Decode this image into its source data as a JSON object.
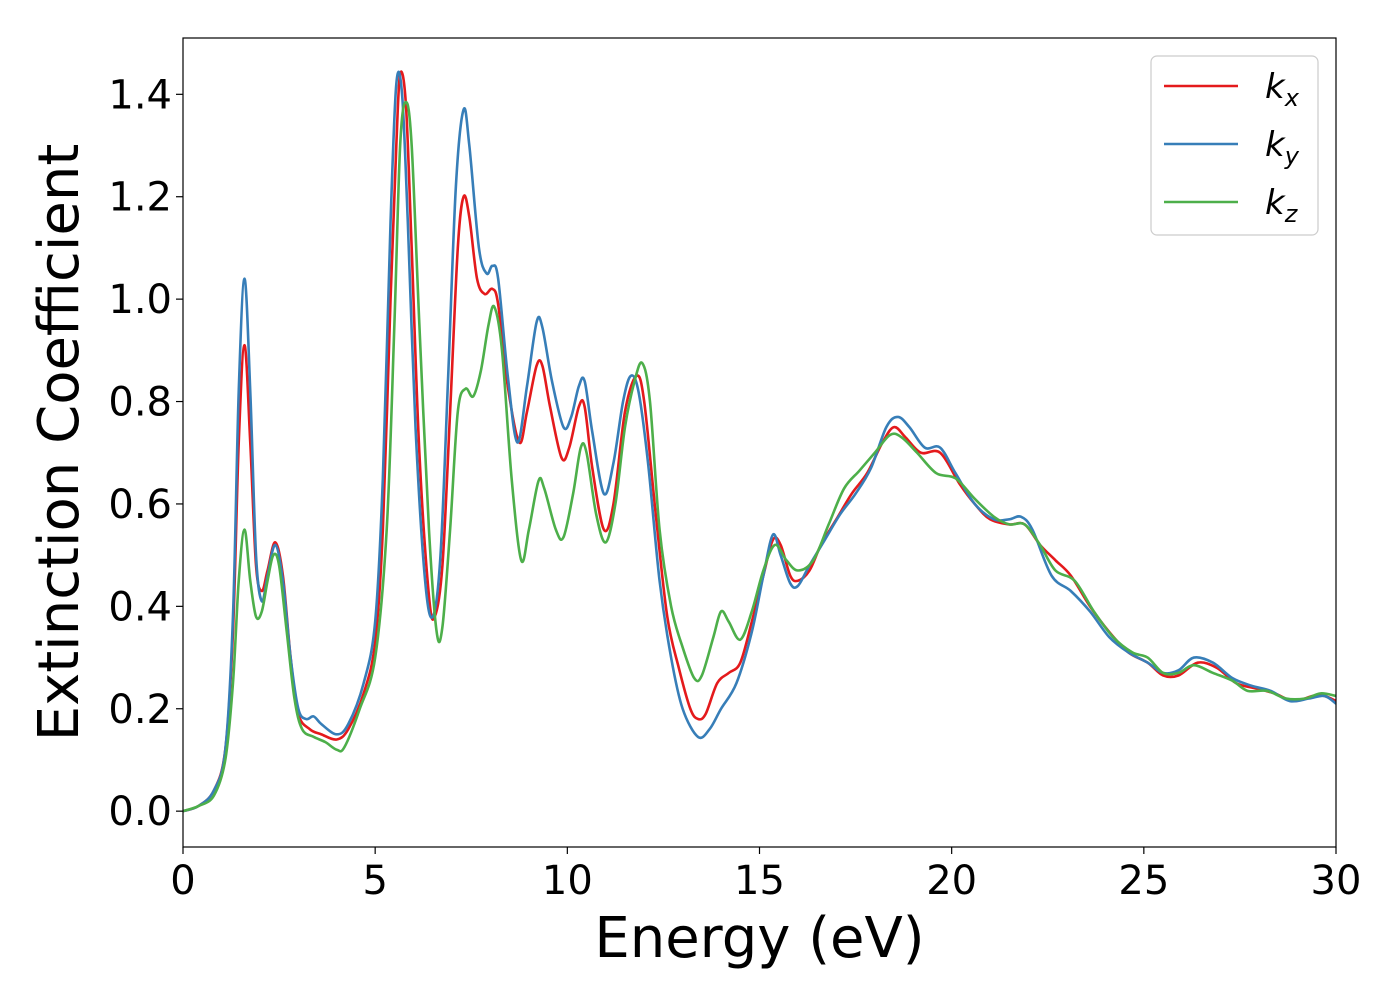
{
  "chart_data": {
    "type": "line",
    "xlabel": "Energy (eV)",
    "ylabel": "Extinction Coefficient",
    "xlim": [
      0,
      30
    ],
    "ylim": [
      -0.07,
      1.51
    ],
    "xticks": [
      0,
      5,
      10,
      15,
      20,
      25,
      30
    ],
    "xtick_labels": [
      "0",
      "5",
      "10",
      "15",
      "20",
      "25",
      "30"
    ],
    "yticks": [
      0.0,
      0.2,
      0.4,
      0.6,
      0.8,
      1.0,
      1.2,
      1.4
    ],
    "ytick_labels": [
      "0.0",
      "0.2",
      "0.4",
      "0.6",
      "0.8",
      "1.0",
      "1.2",
      "1.4"
    ],
    "grid": false,
    "legend": {
      "position": "top-right",
      "entries": [
        {
          "base": "k",
          "sub": "x",
          "color": "#e41a1c"
        },
        {
          "base": "k",
          "sub": "y",
          "color": "#377eb8"
        },
        {
          "base": "k",
          "sub": "z",
          "color": "#4daf4a"
        }
      ]
    },
    "series": [
      {
        "name": "kx",
        "color": "#e41a1c",
        "points": [
          [
            0,
            0
          ],
          [
            0.4,
            0.01
          ],
          [
            0.8,
            0.04
          ],
          [
            1.1,
            0.12
          ],
          [
            1.3,
            0.35
          ],
          [
            1.45,
            0.72
          ],
          [
            1.6,
            0.91
          ],
          [
            1.75,
            0.72
          ],
          [
            1.9,
            0.48
          ],
          [
            2.05,
            0.43
          ],
          [
            2.2,
            0.47
          ],
          [
            2.4,
            0.525
          ],
          [
            2.6,
            0.46
          ],
          [
            2.8,
            0.3
          ],
          [
            3.0,
            0.19
          ],
          [
            3.3,
            0.16
          ],
          [
            3.6,
            0.15
          ],
          [
            4.0,
            0.14
          ],
          [
            4.3,
            0.16
          ],
          [
            4.7,
            0.23
          ],
          [
            5.0,
            0.33
          ],
          [
            5.2,
            0.55
          ],
          [
            5.4,
            1.0
          ],
          [
            5.55,
            1.3
          ],
          [
            5.65,
            1.44
          ],
          [
            5.8,
            1.38
          ],
          [
            5.95,
            1.1
          ],
          [
            6.15,
            0.7
          ],
          [
            6.4,
            0.42
          ],
          [
            6.55,
            0.38
          ],
          [
            6.75,
            0.48
          ],
          [
            6.95,
            0.78
          ],
          [
            7.15,
            1.1
          ],
          [
            7.3,
            1.2
          ],
          [
            7.45,
            1.16
          ],
          [
            7.65,
            1.04
          ],
          [
            7.85,
            1.01
          ],
          [
            8.05,
            1.02
          ],
          [
            8.2,
            0.99
          ],
          [
            8.45,
            0.83
          ],
          [
            8.75,
            0.72
          ],
          [
            8.95,
            0.78
          ],
          [
            9.2,
            0.87
          ],
          [
            9.35,
            0.87
          ],
          [
            9.55,
            0.79
          ],
          [
            9.85,
            0.69
          ],
          [
            10.05,
            0.71
          ],
          [
            10.3,
            0.79
          ],
          [
            10.45,
            0.79
          ],
          [
            10.65,
            0.67
          ],
          [
            10.95,
            0.55
          ],
          [
            11.2,
            0.6
          ],
          [
            11.5,
            0.78
          ],
          [
            11.8,
            0.85
          ],
          [
            12.0,
            0.8
          ],
          [
            12.3,
            0.58
          ],
          [
            12.6,
            0.38
          ],
          [
            12.9,
            0.28
          ],
          [
            13.2,
            0.2
          ],
          [
            13.4,
            0.18
          ],
          [
            13.6,
            0.19
          ],
          [
            13.9,
            0.25
          ],
          [
            14.2,
            0.27
          ],
          [
            14.5,
            0.29
          ],
          [
            14.8,
            0.37
          ],
          [
            15.1,
            0.46
          ],
          [
            15.35,
            0.53
          ],
          [
            15.55,
            0.52
          ],
          [
            15.8,
            0.46
          ],
          [
            16.0,
            0.45
          ],
          [
            16.3,
            0.47
          ],
          [
            16.6,
            0.52
          ],
          [
            17.0,
            0.57
          ],
          [
            17.4,
            0.62
          ],
          [
            17.8,
            0.66
          ],
          [
            18.2,
            0.72
          ],
          [
            18.5,
            0.75
          ],
          [
            18.8,
            0.73
          ],
          [
            19.2,
            0.7
          ],
          [
            19.7,
            0.7
          ],
          [
            20.2,
            0.64
          ],
          [
            20.6,
            0.6
          ],
          [
            21.0,
            0.57
          ],
          [
            21.5,
            0.56
          ],
          [
            21.9,
            0.56
          ],
          [
            22.3,
            0.52
          ],
          [
            22.7,
            0.49
          ],
          [
            23.1,
            0.46
          ],
          [
            23.6,
            0.4
          ],
          [
            24.1,
            0.35
          ],
          [
            24.6,
            0.31
          ],
          [
            25.1,
            0.29
          ],
          [
            25.5,
            0.265
          ],
          [
            25.9,
            0.265
          ],
          [
            26.4,
            0.29
          ],
          [
            26.9,
            0.28
          ],
          [
            27.4,
            0.25
          ],
          [
            27.9,
            0.24
          ],
          [
            28.4,
            0.23
          ],
          [
            28.9,
            0.215
          ],
          [
            29.4,
            0.225
          ],
          [
            29.7,
            0.225
          ],
          [
            30.0,
            0.215
          ]
        ]
      },
      {
        "name": "ky",
        "color": "#377eb8",
        "points": [
          [
            0,
            0
          ],
          [
            0.4,
            0.01
          ],
          [
            0.8,
            0.04
          ],
          [
            1.1,
            0.12
          ],
          [
            1.3,
            0.38
          ],
          [
            1.45,
            0.82
          ],
          [
            1.6,
            1.04
          ],
          [
            1.75,
            0.82
          ],
          [
            1.9,
            0.5
          ],
          [
            2.05,
            0.41
          ],
          [
            2.2,
            0.46
          ],
          [
            2.4,
            0.52
          ],
          [
            2.6,
            0.45
          ],
          [
            2.8,
            0.3
          ],
          [
            3.0,
            0.2
          ],
          [
            3.2,
            0.18
          ],
          [
            3.4,
            0.185
          ],
          [
            3.6,
            0.17
          ],
          [
            4.0,
            0.15
          ],
          [
            4.3,
            0.17
          ],
          [
            4.7,
            0.25
          ],
          [
            5.0,
            0.37
          ],
          [
            5.2,
            0.65
          ],
          [
            5.4,
            1.15
          ],
          [
            5.55,
            1.42
          ],
          [
            5.7,
            1.4
          ],
          [
            5.85,
            1.15
          ],
          [
            6.05,
            0.75
          ],
          [
            6.3,
            0.45
          ],
          [
            6.5,
            0.38
          ],
          [
            6.7,
            0.5
          ],
          [
            6.9,
            0.85
          ],
          [
            7.1,
            1.22
          ],
          [
            7.3,
            1.37
          ],
          [
            7.45,
            1.3
          ],
          [
            7.7,
            1.1
          ],
          [
            7.9,
            1.05
          ],
          [
            8.05,
            1.065
          ],
          [
            8.2,
            1.04
          ],
          [
            8.45,
            0.85
          ],
          [
            8.7,
            0.72
          ],
          [
            8.95,
            0.83
          ],
          [
            9.2,
            0.955
          ],
          [
            9.35,
            0.945
          ],
          [
            9.6,
            0.84
          ],
          [
            9.9,
            0.75
          ],
          [
            10.1,
            0.77
          ],
          [
            10.3,
            0.83
          ],
          [
            10.45,
            0.84
          ],
          [
            10.65,
            0.74
          ],
          [
            10.95,
            0.62
          ],
          [
            11.2,
            0.68
          ],
          [
            11.45,
            0.8
          ],
          [
            11.65,
            0.85
          ],
          [
            11.85,
            0.82
          ],
          [
            12.1,
            0.68
          ],
          [
            12.4,
            0.45
          ],
          [
            12.7,
            0.3
          ],
          [
            13.0,
            0.2
          ],
          [
            13.4,
            0.145
          ],
          [
            13.7,
            0.16
          ],
          [
            14.0,
            0.2
          ],
          [
            14.4,
            0.25
          ],
          [
            14.8,
            0.35
          ],
          [
            15.1,
            0.46
          ],
          [
            15.35,
            0.54
          ],
          [
            15.55,
            0.5
          ],
          [
            15.8,
            0.445
          ],
          [
            16.0,
            0.44
          ],
          [
            16.3,
            0.48
          ],
          [
            16.7,
            0.53
          ],
          [
            17.1,
            0.58
          ],
          [
            17.5,
            0.62
          ],
          [
            17.9,
            0.67
          ],
          [
            18.3,
            0.75
          ],
          [
            18.6,
            0.77
          ],
          [
            18.9,
            0.75
          ],
          [
            19.3,
            0.71
          ],
          [
            19.7,
            0.71
          ],
          [
            20.1,
            0.66
          ],
          [
            20.6,
            0.6
          ],
          [
            21.1,
            0.57
          ],
          [
            21.5,
            0.57
          ],
          [
            21.8,
            0.575
          ],
          [
            22.1,
            0.55
          ],
          [
            22.6,
            0.46
          ],
          [
            23.1,
            0.43
          ],
          [
            23.6,
            0.39
          ],
          [
            24.1,
            0.34
          ],
          [
            24.6,
            0.31
          ],
          [
            25.1,
            0.29
          ],
          [
            25.5,
            0.27
          ],
          [
            25.9,
            0.275
          ],
          [
            26.3,
            0.3
          ],
          [
            26.8,
            0.29
          ],
          [
            27.3,
            0.26
          ],
          [
            27.8,
            0.245
          ],
          [
            28.3,
            0.235
          ],
          [
            28.8,
            0.215
          ],
          [
            29.3,
            0.22
          ],
          [
            29.7,
            0.225
          ],
          [
            30.0,
            0.21
          ]
        ]
      },
      {
        "name": "kz",
        "color": "#4daf4a",
        "points": [
          [
            0,
            0
          ],
          [
            0.4,
            0.01
          ],
          [
            0.8,
            0.03
          ],
          [
            1.1,
            0.1
          ],
          [
            1.3,
            0.25
          ],
          [
            1.45,
            0.45
          ],
          [
            1.6,
            0.55
          ],
          [
            1.75,
            0.45
          ],
          [
            1.9,
            0.38
          ],
          [
            2.05,
            0.39
          ],
          [
            2.2,
            0.45
          ],
          [
            2.35,
            0.5
          ],
          [
            2.5,
            0.48
          ],
          [
            2.7,
            0.35
          ],
          [
            2.9,
            0.22
          ],
          [
            3.1,
            0.16
          ],
          [
            3.4,
            0.145
          ],
          [
            3.7,
            0.135
          ],
          [
            4.0,
            0.12
          ],
          [
            4.2,
            0.125
          ],
          [
            4.6,
            0.2
          ],
          [
            5.0,
            0.3
          ],
          [
            5.3,
            0.55
          ],
          [
            5.5,
            0.95
          ],
          [
            5.65,
            1.3
          ],
          [
            5.8,
            1.385
          ],
          [
            5.95,
            1.3
          ],
          [
            6.15,
            0.95
          ],
          [
            6.4,
            0.55
          ],
          [
            6.6,
            0.35
          ],
          [
            6.75,
            0.36
          ],
          [
            6.95,
            0.55
          ],
          [
            7.15,
            0.78
          ],
          [
            7.35,
            0.825
          ],
          [
            7.55,
            0.81
          ],
          [
            7.75,
            0.86
          ],
          [
            7.95,
            0.95
          ],
          [
            8.1,
            0.985
          ],
          [
            8.3,
            0.9
          ],
          [
            8.55,
            0.65
          ],
          [
            8.8,
            0.49
          ],
          [
            9.0,
            0.55
          ],
          [
            9.25,
            0.645
          ],
          [
            9.4,
            0.63
          ],
          [
            9.7,
            0.55
          ],
          [
            9.9,
            0.535
          ],
          [
            10.15,
            0.62
          ],
          [
            10.35,
            0.71
          ],
          [
            10.5,
            0.7
          ],
          [
            10.75,
            0.58
          ],
          [
            11.0,
            0.525
          ],
          [
            11.25,
            0.6
          ],
          [
            11.5,
            0.75
          ],
          [
            11.75,
            0.84
          ],
          [
            11.95,
            0.875
          ],
          [
            12.15,
            0.8
          ],
          [
            12.4,
            0.55
          ],
          [
            12.7,
            0.4
          ],
          [
            13.0,
            0.32
          ],
          [
            13.3,
            0.26
          ],
          [
            13.5,
            0.265
          ],
          [
            13.8,
            0.34
          ],
          [
            14.0,
            0.39
          ],
          [
            14.2,
            0.37
          ],
          [
            14.5,
            0.335
          ],
          [
            14.8,
            0.39
          ],
          [
            15.1,
            0.47
          ],
          [
            15.4,
            0.52
          ],
          [
            15.7,
            0.49
          ],
          [
            16.0,
            0.47
          ],
          [
            16.4,
            0.49
          ],
          [
            16.8,
            0.56
          ],
          [
            17.2,
            0.63
          ],
          [
            17.6,
            0.665
          ],
          [
            18.0,
            0.7
          ],
          [
            18.4,
            0.735
          ],
          [
            18.7,
            0.73
          ],
          [
            19.1,
            0.7
          ],
          [
            19.6,
            0.66
          ],
          [
            20.1,
            0.65
          ],
          [
            20.6,
            0.61
          ],
          [
            21.1,
            0.575
          ],
          [
            21.5,
            0.56
          ],
          [
            21.9,
            0.56
          ],
          [
            22.3,
            0.52
          ],
          [
            22.7,
            0.47
          ],
          [
            23.2,
            0.45
          ],
          [
            23.7,
            0.39
          ],
          [
            24.2,
            0.34
          ],
          [
            24.7,
            0.31
          ],
          [
            25.1,
            0.3
          ],
          [
            25.5,
            0.27
          ],
          [
            25.9,
            0.27
          ],
          [
            26.3,
            0.285
          ],
          [
            26.8,
            0.27
          ],
          [
            27.3,
            0.255
          ],
          [
            27.7,
            0.235
          ],
          [
            28.2,
            0.235
          ],
          [
            28.7,
            0.22
          ],
          [
            29.2,
            0.22
          ],
          [
            29.6,
            0.23
          ],
          [
            30.0,
            0.225
          ]
        ]
      }
    ]
  }
}
